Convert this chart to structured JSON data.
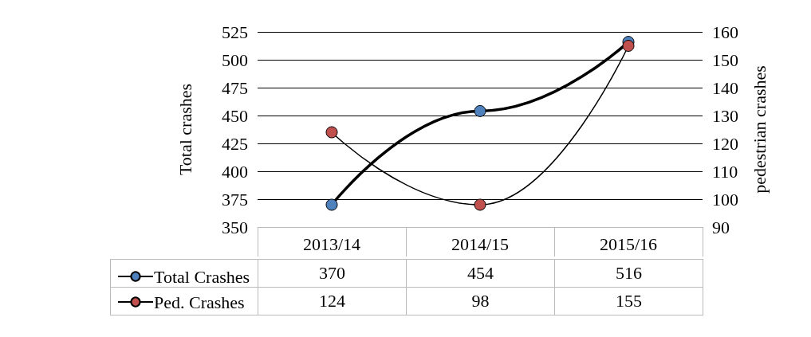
{
  "chart_data": {
    "type": "line",
    "categories": [
      "2013/14",
      "2014/15",
      "2015/16"
    ],
    "ylabel": "Total crashes",
    "y2label": "pedestrian crashes",
    "ylim": [
      350,
      525
    ],
    "yticks": [
      350,
      375,
      400,
      425,
      450,
      475,
      500,
      525
    ],
    "y2lim": [
      90,
      160
    ],
    "y2ticks": [
      90,
      100,
      110,
      120,
      130,
      140,
      150,
      160
    ],
    "grid": "y",
    "legend": "bottom left",
    "marker": "circle",
    "data_labels": true,
    "series": [
      {
        "name": "Total Crashes",
        "color": "#4f81bd",
        "values": [
          370,
          454,
          516
        ]
      },
      {
        "name": "Ped. Crashes",
        "color": "#c0504d",
        "values": [
          124,
          98,
          155
        ],
        "axis": "y2"
      }
    ]
  }
}
